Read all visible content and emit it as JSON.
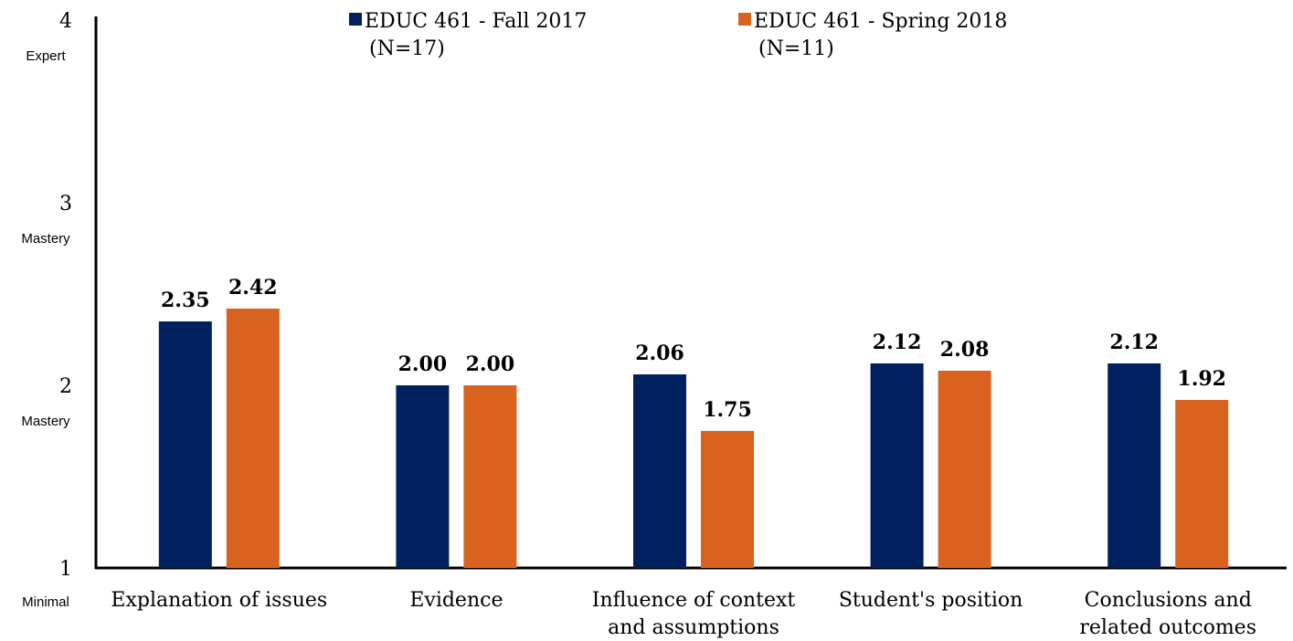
{
  "colors": {
    "fall": "#002060",
    "spring": "#D9631E",
    "axis": "#000000"
  },
  "chart_data": {
    "type": "bar",
    "title": "",
    "xlabel": "",
    "ylabel": "",
    "ylim": [
      1,
      4
    ],
    "grid": false,
    "legend_position": "top",
    "y_ticks": [
      {
        "value": 1,
        "label": "1",
        "sublabel": "Minimal"
      },
      {
        "value": 2,
        "label": "2",
        "sublabel": "Mastery"
      },
      {
        "value": 3,
        "label": "3",
        "sublabel": "Mastery"
      },
      {
        "value": 4,
        "label": "4",
        "sublabel": "Expert"
      }
    ],
    "categories": [
      [
        "Explanation of issues"
      ],
      [
        "Evidence"
      ],
      [
        "Influence of context",
        "and assumptions"
      ],
      [
        "Student's position"
      ],
      [
        "Conclusions and",
        "related outcomes"
      ]
    ],
    "series": [
      {
        "name": [
          "EDUC 461 - Fall 2017",
          "(N=17)"
        ],
        "color": "#002060",
        "values": [
          2.35,
          2.0,
          2.06,
          2.12,
          2.12
        ],
        "labels": [
          "2.35",
          "2.00",
          "2.06",
          "2.12",
          "2.12"
        ]
      },
      {
        "name": [
          "EDUC 461 - Spring 2018",
          "(N=11)"
        ],
        "color": "#D9631E",
        "values": [
          2.42,
          2.0,
          1.75,
          2.08,
          1.92
        ],
        "labels": [
          "2.42",
          "2.00",
          "1.75",
          "2.08",
          "1.92"
        ]
      }
    ]
  }
}
